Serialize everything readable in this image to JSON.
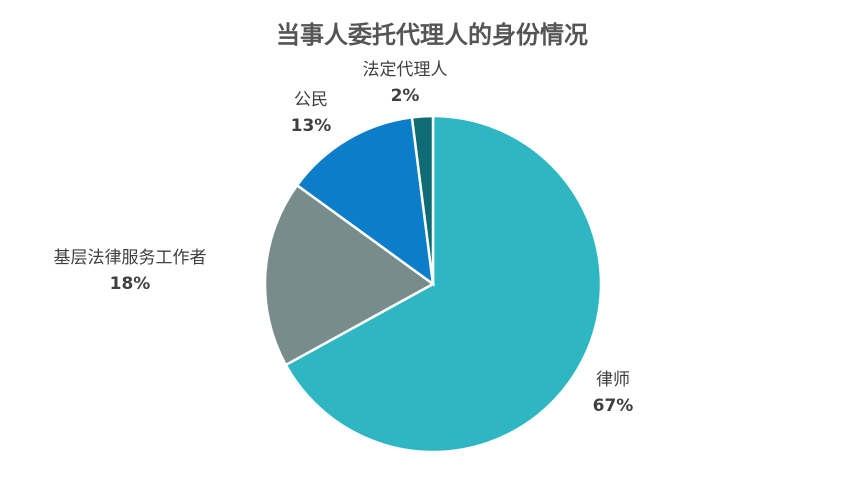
{
  "chart_data": {
    "type": "pie",
    "title": "当事人委托代理人的身份情况",
    "categories": [
      "律师",
      "基层法律服务工作者",
      "公民",
      "法定代理人"
    ],
    "values": [
      67,
      18,
      13,
      2
    ],
    "value_labels": [
      "67%",
      "18%",
      "13%",
      "2%"
    ],
    "colors": [
      "#2eb7c3",
      "#788c8c",
      "#0b7dc9",
      "#0f6b74"
    ]
  }
}
